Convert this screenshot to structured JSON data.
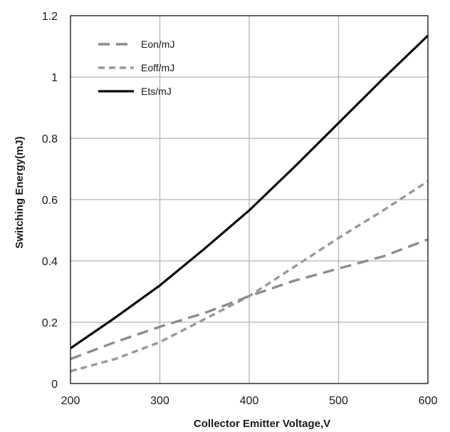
{
  "chart_data": {
    "type": "line",
    "title": "",
    "xlabel": "Collector Emitter Voltage,V",
    "ylabel": "Switching Energy(mJ)",
    "xlim": [
      200,
      600
    ],
    "ylim": [
      0,
      1.2
    ],
    "xticks": [
      200,
      300,
      400,
      500,
      600
    ],
    "xtick_labels": [
      "200",
      "300",
      "400",
      "500",
      "600"
    ],
    "yticks": [
      0,
      0.2,
      0.4,
      0.6,
      0.8,
      1.0,
      1.2
    ],
    "ytick_labels": [
      "0",
      "0.2",
      "0.4",
      "0.6",
      "0.8",
      "1",
      "1.2"
    ],
    "grid": true,
    "legend_position": "top-left",
    "x": [
      200,
      250,
      300,
      350,
      400,
      450,
      500,
      550,
      600
    ],
    "series": [
      {
        "name": "Eon/mJ",
        "style": "long-dash",
        "color": "#8c8c8c",
        "values": [
          0.08,
          0.135,
          0.185,
          0.23,
          0.285,
          0.335,
          0.375,
          0.415,
          0.47
        ]
      },
      {
        "name": "Eoff/mJ",
        "style": "short-dash",
        "color": "#999999",
        "values": [
          0.04,
          0.08,
          0.135,
          0.21,
          0.285,
          0.38,
          0.475,
          0.565,
          0.66
        ]
      },
      {
        "name": "Ets/mJ",
        "style": "solid",
        "color": "#0a0a0a",
        "values": [
          0.115,
          0.215,
          0.32,
          0.44,
          0.565,
          0.705,
          0.85,
          0.995,
          1.135
        ]
      }
    ]
  }
}
